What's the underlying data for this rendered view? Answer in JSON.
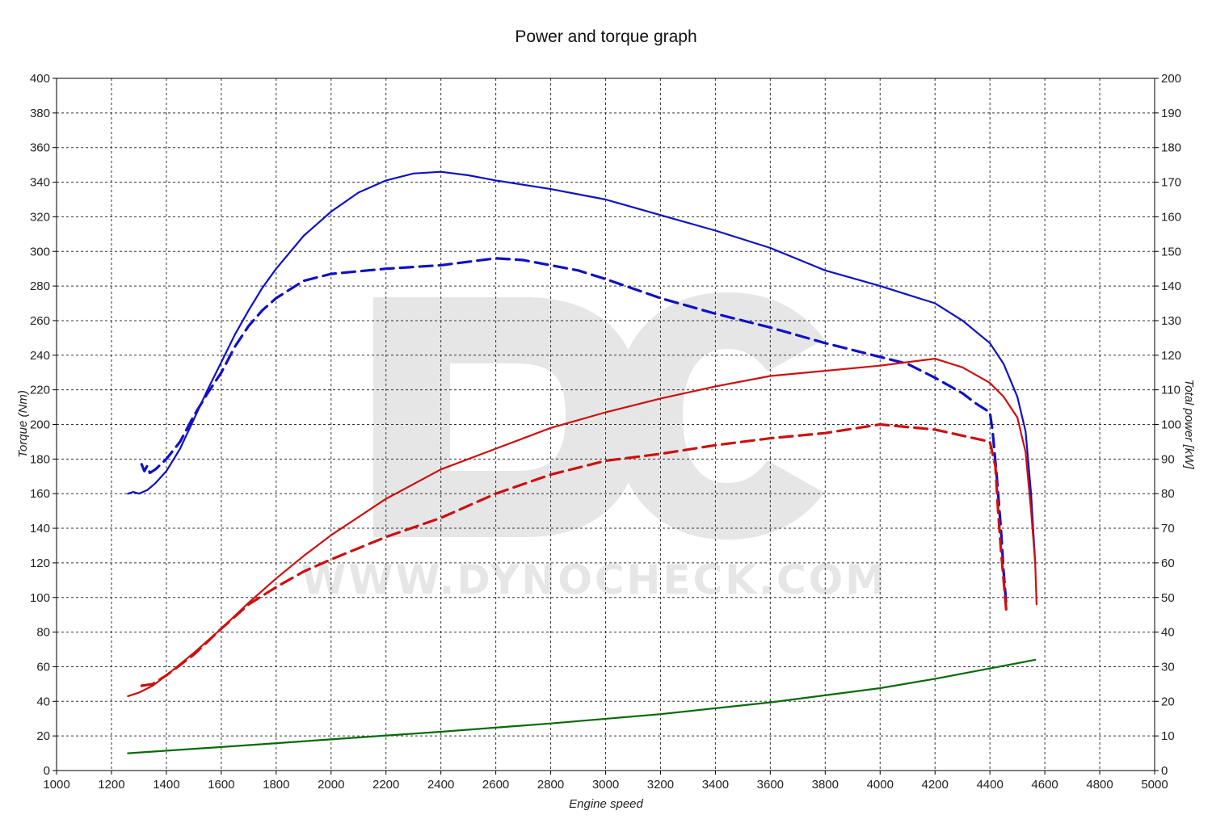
{
  "chart_data": {
    "type": "line",
    "title": "Power and torque graph",
    "xlabel": "Engine speed",
    "ylabel_left": "Torque (Nm)",
    "ylabel_right": "Total power [kW]",
    "xlim": [
      1000,
      5000
    ],
    "ylim_left": [
      0,
      400
    ],
    "ylim_right": [
      0,
      200
    ],
    "x_ticks": [
      1000,
      1200,
      1400,
      1600,
      1800,
      2000,
      2200,
      2400,
      2600,
      2800,
      3000,
      3200,
      3400,
      3600,
      3800,
      4000,
      4200,
      4400,
      4600,
      4800,
      5000
    ],
    "y_ticks_left": [
      0,
      20,
      40,
      60,
      80,
      100,
      120,
      140,
      160,
      180,
      200,
      220,
      240,
      260,
      280,
      300,
      320,
      340,
      360,
      380,
      400
    ],
    "y_ticks_right": [
      0,
      10,
      20,
      30,
      40,
      50,
      60,
      70,
      80,
      90,
      100,
      110,
      120,
      130,
      140,
      150,
      160,
      170,
      180,
      190,
      200
    ],
    "grid": true,
    "watermark": {
      "logo": "DC",
      "text": "WWW.DYNOCHECK.COM"
    },
    "series": [
      {
        "axis": "left",
        "color": "#1010c8",
        "dash": false,
        "points": [
          [
            1260,
            160
          ],
          [
            1280,
            161
          ],
          [
            1300,
            160
          ],
          [
            1330,
            162
          ],
          [
            1360,
            166
          ],
          [
            1400,
            173
          ],
          [
            1450,
            186
          ],
          [
            1500,
            203
          ],
          [
            1550,
            220
          ],
          [
            1600,
            236
          ],
          [
            1650,
            252
          ],
          [
            1700,
            266
          ],
          [
            1750,
            279
          ],
          [
            1800,
            290
          ],
          [
            1900,
            309
          ],
          [
            2000,
            323
          ],
          [
            2100,
            334
          ],
          [
            2200,
            341
          ],
          [
            2300,
            345
          ],
          [
            2400,
            346
          ],
          [
            2500,
            344
          ],
          [
            2600,
            341
          ],
          [
            2800,
            336
          ],
          [
            3000,
            330
          ],
          [
            3200,
            321
          ],
          [
            3400,
            312
          ],
          [
            3600,
            302
          ],
          [
            3800,
            289
          ],
          [
            4000,
            280
          ],
          [
            4100,
            275
          ],
          [
            4200,
            270
          ],
          [
            4300,
            260
          ],
          [
            4400,
            247
          ],
          [
            4450,
            235
          ],
          [
            4500,
            216
          ],
          [
            4530,
            196
          ],
          [
            4550,
            160
          ],
          [
            4565,
            120
          ]
        ]
      },
      {
        "axis": "left",
        "color": "#1010c8",
        "dash": true,
        "points": [
          [
            1310,
            177
          ],
          [
            1320,
            173
          ],
          [
            1330,
            176
          ],
          [
            1340,
            172
          ],
          [
            1360,
            174
          ],
          [
            1400,
            180
          ],
          [
            1450,
            190
          ],
          [
            1500,
            205
          ],
          [
            1550,
            218
          ],
          [
            1600,
            230
          ],
          [
            1650,
            245
          ],
          [
            1700,
            257
          ],
          [
            1750,
            266
          ],
          [
            1800,
            273
          ],
          [
            1900,
            283
          ],
          [
            2000,
            287
          ],
          [
            2200,
            290
          ],
          [
            2400,
            292
          ],
          [
            2600,
            296
          ],
          [
            2700,
            295
          ],
          [
            2900,
            289
          ],
          [
            3000,
            284
          ],
          [
            3200,
            273
          ],
          [
            3400,
            264
          ],
          [
            3600,
            256
          ],
          [
            3800,
            247
          ],
          [
            4000,
            239
          ],
          [
            4100,
            235
          ],
          [
            4200,
            227
          ],
          [
            4300,
            218
          ],
          [
            4350,
            212
          ],
          [
            4400,
            207
          ],
          [
            4410,
            196
          ],
          [
            4425,
            170
          ],
          [
            4440,
            140
          ],
          [
            4450,
            115
          ],
          [
            4460,
            95
          ]
        ]
      },
      {
        "axis": "right",
        "color": "#cc1010",
        "dash": false,
        "points": [
          [
            1260,
            21.5
          ],
          [
            1300,
            22.5
          ],
          [
            1350,
            24.5
          ],
          [
            1400,
            27.5
          ],
          [
            1500,
            34
          ],
          [
            1600,
            41
          ],
          [
            1700,
            48.5
          ],
          [
            1800,
            55.5
          ],
          [
            1900,
            62
          ],
          [
            2000,
            68
          ],
          [
            2200,
            78.5
          ],
          [
            2400,
            87
          ],
          [
            2600,
            93
          ],
          [
            2800,
            99
          ],
          [
            3000,
            103.5
          ],
          [
            3200,
            107.5
          ],
          [
            3400,
            111
          ],
          [
            3600,
            114
          ],
          [
            3800,
            115.5
          ],
          [
            4000,
            117
          ],
          [
            4100,
            118
          ],
          [
            4200,
            119
          ],
          [
            4300,
            116.5
          ],
          [
            4400,
            112
          ],
          [
            4450,
            108
          ],
          [
            4500,
            102
          ],
          [
            4530,
            92
          ],
          [
            4550,
            75
          ],
          [
            4565,
            60
          ],
          [
            4570,
            48
          ]
        ]
      },
      {
        "axis": "right",
        "color": "#cc1010",
        "dash": true,
        "points": [
          [
            1310,
            24.5
          ],
          [
            1350,
            25
          ],
          [
            1400,
            27.5
          ],
          [
            1500,
            33.5
          ],
          [
            1600,
            41
          ],
          [
            1700,
            48
          ],
          [
            1800,
            53
          ],
          [
            1900,
            57.5
          ],
          [
            2000,
            61
          ],
          [
            2200,
            67.5
          ],
          [
            2400,
            73
          ],
          [
            2600,
            80
          ],
          [
            2800,
            85.5
          ],
          [
            3000,
            89.5
          ],
          [
            3200,
            91.5
          ],
          [
            3400,
            94
          ],
          [
            3600,
            96
          ],
          [
            3800,
            97.5
          ],
          [
            4000,
            100
          ],
          [
            4200,
            98.5
          ],
          [
            4400,
            95
          ],
          [
            4420,
            88
          ],
          [
            4430,
            75
          ],
          [
            4440,
            64
          ],
          [
            4450,
            55
          ],
          [
            4460,
            46
          ]
        ]
      },
      {
        "axis": "right",
        "color": "#0a6a0a",
        "dash": false,
        "points": [
          [
            1260,
            5
          ],
          [
            1600,
            6.8
          ],
          [
            2000,
            9
          ],
          [
            2400,
            11.2
          ],
          [
            2800,
            13.6
          ],
          [
            3200,
            16.3
          ],
          [
            3600,
            19.7
          ],
          [
            4000,
            23.8
          ],
          [
            4200,
            26.5
          ],
          [
            4400,
            29.5
          ],
          [
            4565,
            32
          ]
        ]
      }
    ]
  }
}
